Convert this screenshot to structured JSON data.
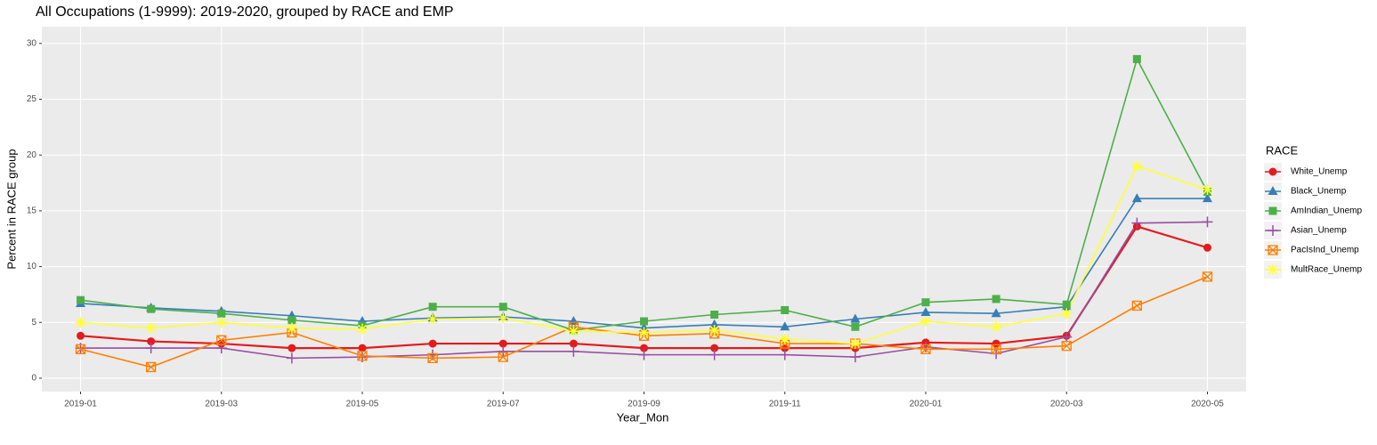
{
  "chart_data": {
    "type": "line",
    "title": "All Occupations (1-9999): 2019-2020, grouped by RACE and EMP",
    "x_label": "Year_Mon",
    "y_label": "Percent in RACE group",
    "legend_title": "RACE",
    "legend": "right",
    "grid": true,
    "categories": [
      "2019-01",
      null,
      "2019-03",
      null,
      "2019-05",
      null,
      "2019-07",
      null,
      "2019-09",
      null,
      "2019-11",
      null,
      "2020-01",
      null,
      "2020-03",
      null,
      "2020-05"
    ],
    "ylim": [
      -1.2,
      31.5
    ],
    "yticks": [
      0,
      5,
      10,
      15,
      20,
      25,
      30
    ],
    "series": [
      {
        "name": "White_Unemp",
        "color": "#e41a1c",
        "shape": "circle",
        "values": [
          3.8,
          3.3,
          3.1,
          2.7,
          2.7,
          3.1,
          3.1,
          3.1,
          2.7,
          2.7,
          2.7,
          2.7,
          3.2,
          3.1,
          3.8,
          13.6,
          11.7
        ]
      },
      {
        "name": "Black_Unemp",
        "color": "#377eb8",
        "shape": "triangle",
        "values": [
          6.7,
          6.3,
          6.0,
          5.6,
          5.1,
          5.4,
          5.5,
          5.1,
          4.5,
          4.8,
          4.6,
          5.3,
          5.9,
          5.8,
          6.4,
          16.1,
          16.1
        ]
      },
      {
        "name": "AmIndian_Unemp",
        "color": "#4daf4a",
        "shape": "square",
        "values": [
          7.0,
          6.2,
          5.8,
          5.2,
          4.7,
          6.4,
          6.4,
          4.3,
          5.1,
          5.7,
          6.1,
          4.6,
          6.8,
          7.1,
          6.6,
          28.6,
          16.7
        ]
      },
      {
        "name": "Asian_Unemp",
        "color": "#984ea3",
        "shape": "plus",
        "values": [
          2.7,
          2.7,
          2.7,
          1.8,
          1.9,
          2.1,
          2.4,
          2.4,
          2.1,
          2.1,
          2.1,
          1.9,
          2.8,
          2.2,
          3.7,
          13.9,
          14.0
        ]
      },
      {
        "name": "PacIsInd_Unemp",
        "color": "#ff7f00",
        "shape": "square-cross",
        "values": [
          2.6,
          1.0,
          3.4,
          4.1,
          2.0,
          1.8,
          1.9,
          4.6,
          3.8,
          4.0,
          3.1,
          3.1,
          2.6,
          2.6,
          2.9,
          6.5,
          9.1
        ]
      },
      {
        "name": "MultRace_Unemp",
        "color": "#ffff33",
        "shape": "asterisk",
        "values": [
          5.0,
          4.5,
          5.0,
          4.5,
          4.4,
          5.3,
          5.4,
          4.2,
          4.1,
          4.3,
          3.5,
          3.1,
          5.1,
          4.6,
          5.8,
          19.0,
          16.9
        ]
      }
    ]
  }
}
